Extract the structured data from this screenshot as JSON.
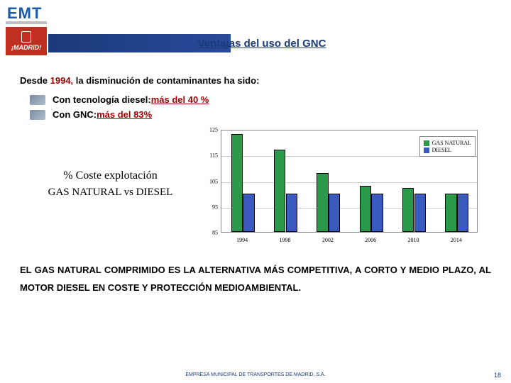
{
  "header": {
    "logo_text": "EMT",
    "madrid_text": "¡MADRID!",
    "title": "Ventajas del uso del GNC"
  },
  "intro": {
    "prefix": "Desde ",
    "year": "1994,",
    "rest": " la disminución de contaminantes ha sido:"
  },
  "bullets": [
    {
      "text": "Con tecnología diesel: ",
      "hl": "más del 40 %"
    },
    {
      "text": "Con GNC: ",
      "hl": "más del 83%"
    }
  ],
  "side_label": {
    "line1": "% Coste explotación",
    "line2": "GAS NATURAL  vs DIESEL"
  },
  "chart": {
    "type": "bar",
    "categories": [
      "1994",
      "1998",
      "2002",
      "2006",
      "2010",
      "2014"
    ],
    "series": [
      {
        "name": "GAS NATURAL",
        "color": "#2a9a4a",
        "values": [
          123,
          117,
          108,
          103,
          102,
          100
        ]
      },
      {
        "name": "DIESEL",
        "color": "#3a5ac0",
        "values": [
          100,
          100,
          100,
          100,
          100,
          100
        ]
      }
    ],
    "ylim": [
      85,
      125
    ],
    "ytick_step": 10,
    "grid_color": "#cccccc",
    "background_color": "#ffffff",
    "bar_group_width": 0.55,
    "tick_fontsize": 8,
    "legend_position": "top-right"
  },
  "conclusion": "EL GAS NATURAL COMPRIMIDO ES LA ALTERNATIVA MÁS COMPETITIVA, A CORTO Y MEDIO PLAZO, AL MOTOR DIESEL EN COSTE Y  PROTECCIÓN  MEDIOAMBIENTAL.",
  "footer": "EMPRESA MUNICIPAL DE TRANSPORTES DE MADRID, S.A.",
  "page_number": "18",
  "colors": {
    "brand_blue": "#1a3a7a",
    "brand_red": "#c03020",
    "highlight_red": "#a00000"
  }
}
